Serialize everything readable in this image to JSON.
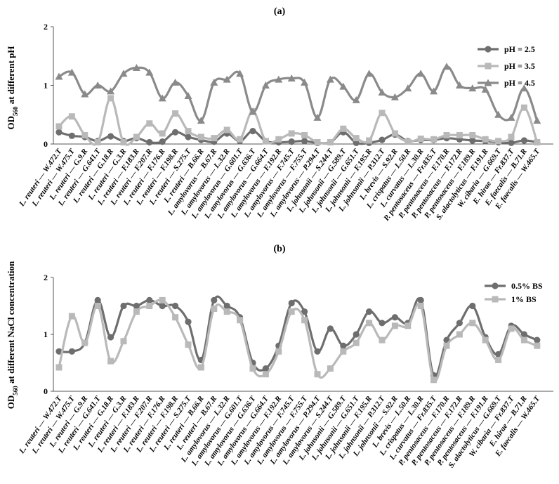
{
  "chart_data": [
    {
      "type": "line",
      "panel_label": "(a)",
      "ylabel_main": "OD",
      "ylabel_sub": "560",
      "ylabel_rest": " at different pH",
      "ylim": [
        0,
        2
      ],
      "yticks": [
        "0",
        "1",
        "2"
      ],
      "grid": false,
      "legend_position": "top-right",
      "categories": [
        "L. reuteri — W.472.T",
        "L. reuteri — W.475.T",
        "L. reuteri — G.9.R",
        "L. reuteri — G.641.T",
        "L. reuteri — G.18.R",
        "L. reuteri — G.3.R",
        "L. reuteri — F.183.R",
        "L. reuteri — F.207.R",
        "L. reuteri — F.176.R",
        "L. reuteri — F.198.R",
        "L. reuteri — S.275.T",
        "L. reuteri — B.66.R",
        "L. amylovorus — B.67.R",
        "L. amylovorus — L.32.R",
        "L. amylovorus — G.601.T",
        "L. amylovorus — G.636.T",
        "L. amylovorus — G.664.T",
        "L. amylovorus — F.192.R",
        "L. amylovorus — F.745.T",
        "L. amylovorus — F.755.T",
        "L. amylovorus — P.294.T",
        "L. johnsonii — S.244.T",
        "L. johnsonii — G.589.T",
        "L. johnsonii — G.651.T",
        "L. johnsonii — F.195.R",
        "L. johnsonii — P.312.T",
        "L. brevis — S.92.R",
        "L. crispatus — L.50.R",
        "L. curvatus — L.30.R",
        "P. pentosaceus — Fr.835.T",
        "P. pentosaceus — F.170.R",
        "P. pentosaceus — F.172.R",
        "P. pentosaceus — F.189.R",
        "S. alactolyticus — F.191.R",
        "W. cibaria — G.669.T",
        "E. hirae — Fr.837.T",
        "E. faecalis — B.71.R",
        "E. faecalis — W.465.T"
      ],
      "series": [
        {
          "name": "pH = 2.5",
          "marker": "circle",
          "color": "#6e6e6e",
          "values": [
            0.2,
            0.14,
            0.12,
            0.05,
            0.13,
            0.05,
            0.1,
            0.03,
            0.04,
            0.2,
            0.12,
            0.07,
            0.04,
            0.18,
            0.05,
            0.22,
            0.05,
            0.03,
            0.04,
            0.05,
            0.02,
            0.03,
            0.2,
            0.02,
            0.02,
            0.07,
            0.16,
            0.05,
            0.07,
            0.07,
            0.1,
            0.08,
            0.06,
            0.05,
            0.03,
            0.02,
            0.06,
            0.03
          ]
        },
        {
          "name": "pH = 3.5",
          "marker": "square",
          "color": "#b9b9b9",
          "values": [
            0.3,
            0.47,
            0.15,
            0.03,
            0.78,
            0.03,
            0.12,
            0.35,
            0.18,
            0.52,
            0.22,
            0.12,
            0.1,
            0.24,
            0.08,
            0.56,
            0.05,
            0.08,
            0.18,
            0.15,
            0.03,
            0.03,
            0.26,
            0.1,
            0.06,
            0.53,
            0.18,
            0.04,
            0.09,
            0.08,
            0.15,
            0.15,
            0.15,
            0.08,
            0.05,
            0.12,
            0.62,
            0.03
          ]
        },
        {
          "name": "pH = 4.5",
          "marker": "triangle",
          "color": "#8a8a8a",
          "values": [
            1.15,
            1.22,
            0.85,
            1.0,
            0.9,
            1.2,
            1.3,
            1.22,
            0.78,
            1.05,
            0.82,
            0.4,
            1.05,
            1.1,
            1.2,
            0.55,
            1.0,
            1.1,
            1.12,
            1.05,
            0.45,
            1.1,
            0.98,
            0.75,
            1.2,
            0.88,
            0.8,
            0.95,
            1.2,
            0.9,
            1.32,
            1.0,
            0.95,
            0.93,
            0.5,
            0.45,
            0.95,
            0.4
          ]
        }
      ]
    },
    {
      "type": "line",
      "panel_label": "(b)",
      "ylabel_main": "OD",
      "ylabel_sub": "560",
      "ylabel_rest": " at different NaCl concentration",
      "ylim": [
        0,
        2
      ],
      "yticks": [
        "0",
        "1",
        "2"
      ],
      "grid": false,
      "legend_position": "top-right",
      "categories": [
        "L. reuteri — W.472.T",
        "L. reuteri — W.475.T",
        "L. reuteri — G.9.R",
        "L. reuteri — G.641.T",
        "L. reuteri — G.18.R",
        "L. reuteri — G.3.R",
        "L. reuteri — F.183.R",
        "L. reuteri — F.207.R",
        "L. reuteri — F.176.R",
        "L. reuteri — F.198.R",
        "L. reuteri — S.275.T",
        "L. reuteri — B.66.R",
        "L. reuteri — B.67.R",
        "L. amylovorus — L.32.R",
        "L. amylovorus — G.601.T",
        "L. amylovorus — G.636.T",
        "L. amylovorus — G.664.T",
        "L. amylovorus — F.192.R",
        "L. amylovorus — F.745.T",
        "L. amylovorus — F.755.T",
        "L. amylovorus — P.294.T",
        "L. amylovorus — S.244.T",
        "L. johnsonii — G.589.T",
        "L. johnsonii — G.651.T",
        "L. johnsonii — F.195.R",
        "L. johnsonii — P.312.T",
        "L. johnsonii — S.92.R",
        "L. brevis — L.50.R",
        "L. crispatus — L.30.R",
        "L. curvatus — Fr.835.T",
        "P. pentosaceus — F.170.R",
        "P. pentosaceus — F.172.R",
        "P. pentosaceus — F.189.R",
        "P. pentosaceus — F.191.R",
        "S. alactolyticus — G.669.T",
        "W. cibaria — Fr.837.T",
        "E. hirae — B.71.R",
        "E. faecalis — W.465.T"
      ],
      "series": [
        {
          "name": "0.5% BS",
          "marker": "circle",
          "color": "#6e6e6e",
          "values": [
            0.7,
            0.7,
            0.85,
            1.6,
            0.95,
            1.5,
            1.5,
            1.6,
            1.5,
            1.5,
            1.22,
            0.55,
            1.6,
            1.5,
            1.3,
            0.5,
            0.4,
            0.8,
            1.55,
            1.4,
            0.7,
            1.1,
            0.8,
            1.0,
            1.4,
            1.2,
            1.3,
            1.2,
            1.6,
            0.28,
            0.9,
            1.2,
            1.5,
            0.95,
            0.65,
            1.15,
            1.0,
            0.9
          ]
        },
        {
          "name": "1% BS",
          "marker": "square",
          "color": "#b9b9b9",
          "values": [
            0.42,
            1.32,
            0.85,
            1.5,
            0.53,
            0.88,
            1.4,
            1.5,
            1.6,
            1.3,
            0.82,
            0.42,
            1.45,
            1.4,
            1.25,
            0.4,
            0.3,
            0.7,
            1.4,
            1.25,
            0.3,
            0.4,
            0.7,
            0.85,
            1.2,
            0.9,
            1.15,
            1.15,
            1.5,
            0.2,
            0.8,
            1.0,
            1.2,
            0.9,
            0.55,
            1.1,
            0.9,
            0.8
          ]
        }
      ]
    }
  ]
}
